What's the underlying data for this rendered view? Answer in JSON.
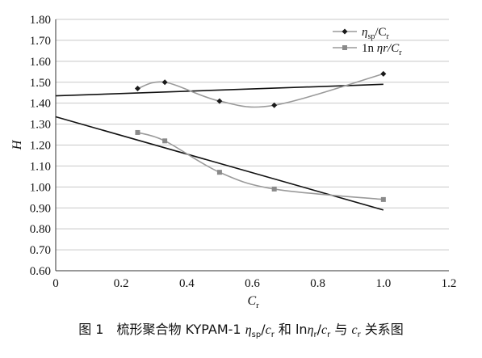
{
  "chart_data": {
    "type": "line",
    "xlabel": "C",
    "xlabel_sub": "r",
    "ylabel": "H",
    "xlim": [
      0,
      1.2
    ],
    "ylim": [
      0.6,
      1.8
    ],
    "x_ticks": [
      "0",
      "0.2",
      "0.4",
      "0.6",
      "0.8",
      "1.0",
      "1.2"
    ],
    "y_ticks": [
      "0.60",
      "0.70",
      "0.80",
      "0.90",
      "1.00",
      "1.10",
      "1.20",
      "1.30",
      "1.40",
      "1.50",
      "1.60",
      "1.70",
      "1.80"
    ],
    "grid": "horizontal",
    "legend_position": "top-right",
    "series": [
      {
        "name_main": "η",
        "name_sub": "sp",
        "name_tail": "/C",
        "name_tail_sub": "r",
        "marker": "diamond",
        "color": "#1a1a1a",
        "curve_color": "#9a9a9a",
        "x": [
          0.25,
          0.333,
          0.5,
          0.667,
          1.0
        ],
        "y": [
          1.47,
          1.5,
          1.41,
          1.39,
          1.54
        ],
        "trendline": {
          "start": [
            0,
            1.435
          ],
          "end": [
            1.0,
            1.49
          ]
        }
      },
      {
        "name_main": "1n ",
        "name_sub": "",
        "name_tail": "ηr/C",
        "name_tail_sub": "r",
        "marker": "square",
        "color": "#8a8a8a",
        "curve_color": "#9a9a9a",
        "x": [
          0.25,
          0.333,
          0.5,
          0.667,
          1.0
        ],
        "y": [
          1.26,
          1.22,
          1.07,
          0.99,
          0.94
        ],
        "trendline": {
          "start": [
            0,
            1.335
          ],
          "end": [
            1.0,
            0.89
          ]
        }
      }
    ]
  },
  "caption": {
    "prefix": "图 1",
    "text1": "梳形聚合物 KYPAM-1 ",
    "eta": "η",
    "sp": "sp",
    "slash1": "/",
    "c1": "c",
    "r1": "r",
    "and": " 和 ln",
    "eta2": "η",
    "r2": "r",
    "slash2": "/",
    "c2": "c",
    "r3": "r",
    "with": " 与 ",
    "c3": "c",
    "r4": "r",
    "tail": " 关系图"
  }
}
